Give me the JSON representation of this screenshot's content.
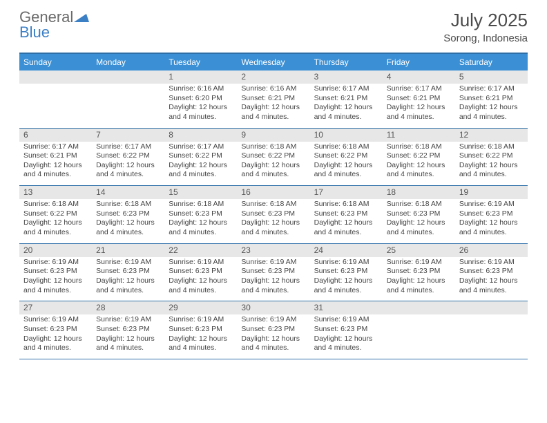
{
  "logo": {
    "part1": "General",
    "part2": "Blue"
  },
  "title": "July 2025",
  "subtitle": "Sorong, Indonesia",
  "colors": {
    "header_bar": "#3b8fd4",
    "border": "#2f6fa8",
    "daynum_bg": "#e7e7e7",
    "logo_gray": "#6a6a6a",
    "logo_blue": "#3b7fc4"
  },
  "day_headers": [
    "Sunday",
    "Monday",
    "Tuesday",
    "Wednesday",
    "Thursday",
    "Friday",
    "Saturday"
  ],
  "weeks": [
    [
      {
        "num": "",
        "lines": []
      },
      {
        "num": "",
        "lines": []
      },
      {
        "num": "1",
        "lines": [
          "Sunrise: 6:16 AM",
          "Sunset: 6:20 PM",
          "Daylight: 12 hours",
          "and 4 minutes."
        ]
      },
      {
        "num": "2",
        "lines": [
          "Sunrise: 6:16 AM",
          "Sunset: 6:21 PM",
          "Daylight: 12 hours",
          "and 4 minutes."
        ]
      },
      {
        "num": "3",
        "lines": [
          "Sunrise: 6:17 AM",
          "Sunset: 6:21 PM",
          "Daylight: 12 hours",
          "and 4 minutes."
        ]
      },
      {
        "num": "4",
        "lines": [
          "Sunrise: 6:17 AM",
          "Sunset: 6:21 PM",
          "Daylight: 12 hours",
          "and 4 minutes."
        ]
      },
      {
        "num": "5",
        "lines": [
          "Sunrise: 6:17 AM",
          "Sunset: 6:21 PM",
          "Daylight: 12 hours",
          "and 4 minutes."
        ]
      }
    ],
    [
      {
        "num": "6",
        "lines": [
          "Sunrise: 6:17 AM",
          "Sunset: 6:21 PM",
          "Daylight: 12 hours",
          "and 4 minutes."
        ]
      },
      {
        "num": "7",
        "lines": [
          "Sunrise: 6:17 AM",
          "Sunset: 6:22 PM",
          "Daylight: 12 hours",
          "and 4 minutes."
        ]
      },
      {
        "num": "8",
        "lines": [
          "Sunrise: 6:17 AM",
          "Sunset: 6:22 PM",
          "Daylight: 12 hours",
          "and 4 minutes."
        ]
      },
      {
        "num": "9",
        "lines": [
          "Sunrise: 6:18 AM",
          "Sunset: 6:22 PM",
          "Daylight: 12 hours",
          "and 4 minutes."
        ]
      },
      {
        "num": "10",
        "lines": [
          "Sunrise: 6:18 AM",
          "Sunset: 6:22 PM",
          "Daylight: 12 hours",
          "and 4 minutes."
        ]
      },
      {
        "num": "11",
        "lines": [
          "Sunrise: 6:18 AM",
          "Sunset: 6:22 PM",
          "Daylight: 12 hours",
          "and 4 minutes."
        ]
      },
      {
        "num": "12",
        "lines": [
          "Sunrise: 6:18 AM",
          "Sunset: 6:22 PM",
          "Daylight: 12 hours",
          "and 4 minutes."
        ]
      }
    ],
    [
      {
        "num": "13",
        "lines": [
          "Sunrise: 6:18 AM",
          "Sunset: 6:22 PM",
          "Daylight: 12 hours",
          "and 4 minutes."
        ]
      },
      {
        "num": "14",
        "lines": [
          "Sunrise: 6:18 AM",
          "Sunset: 6:23 PM",
          "Daylight: 12 hours",
          "and 4 minutes."
        ]
      },
      {
        "num": "15",
        "lines": [
          "Sunrise: 6:18 AM",
          "Sunset: 6:23 PM",
          "Daylight: 12 hours",
          "and 4 minutes."
        ]
      },
      {
        "num": "16",
        "lines": [
          "Sunrise: 6:18 AM",
          "Sunset: 6:23 PM",
          "Daylight: 12 hours",
          "and 4 minutes."
        ]
      },
      {
        "num": "17",
        "lines": [
          "Sunrise: 6:18 AM",
          "Sunset: 6:23 PM",
          "Daylight: 12 hours",
          "and 4 minutes."
        ]
      },
      {
        "num": "18",
        "lines": [
          "Sunrise: 6:18 AM",
          "Sunset: 6:23 PM",
          "Daylight: 12 hours",
          "and 4 minutes."
        ]
      },
      {
        "num": "19",
        "lines": [
          "Sunrise: 6:19 AM",
          "Sunset: 6:23 PM",
          "Daylight: 12 hours",
          "and 4 minutes."
        ]
      }
    ],
    [
      {
        "num": "20",
        "lines": [
          "Sunrise: 6:19 AM",
          "Sunset: 6:23 PM",
          "Daylight: 12 hours",
          "and 4 minutes."
        ]
      },
      {
        "num": "21",
        "lines": [
          "Sunrise: 6:19 AM",
          "Sunset: 6:23 PM",
          "Daylight: 12 hours",
          "and 4 minutes."
        ]
      },
      {
        "num": "22",
        "lines": [
          "Sunrise: 6:19 AM",
          "Sunset: 6:23 PM",
          "Daylight: 12 hours",
          "and 4 minutes."
        ]
      },
      {
        "num": "23",
        "lines": [
          "Sunrise: 6:19 AM",
          "Sunset: 6:23 PM",
          "Daylight: 12 hours",
          "and 4 minutes."
        ]
      },
      {
        "num": "24",
        "lines": [
          "Sunrise: 6:19 AM",
          "Sunset: 6:23 PM",
          "Daylight: 12 hours",
          "and 4 minutes."
        ]
      },
      {
        "num": "25",
        "lines": [
          "Sunrise: 6:19 AM",
          "Sunset: 6:23 PM",
          "Daylight: 12 hours",
          "and 4 minutes."
        ]
      },
      {
        "num": "26",
        "lines": [
          "Sunrise: 6:19 AM",
          "Sunset: 6:23 PM",
          "Daylight: 12 hours",
          "and 4 minutes."
        ]
      }
    ],
    [
      {
        "num": "27",
        "lines": [
          "Sunrise: 6:19 AM",
          "Sunset: 6:23 PM",
          "Daylight: 12 hours",
          "and 4 minutes."
        ]
      },
      {
        "num": "28",
        "lines": [
          "Sunrise: 6:19 AM",
          "Sunset: 6:23 PM",
          "Daylight: 12 hours",
          "and 4 minutes."
        ]
      },
      {
        "num": "29",
        "lines": [
          "Sunrise: 6:19 AM",
          "Sunset: 6:23 PM",
          "Daylight: 12 hours",
          "and 4 minutes."
        ]
      },
      {
        "num": "30",
        "lines": [
          "Sunrise: 6:19 AM",
          "Sunset: 6:23 PM",
          "Daylight: 12 hours",
          "and 4 minutes."
        ]
      },
      {
        "num": "31",
        "lines": [
          "Sunrise: 6:19 AM",
          "Sunset: 6:23 PM",
          "Daylight: 12 hours",
          "and 4 minutes."
        ]
      },
      {
        "num": "",
        "lines": []
      },
      {
        "num": "",
        "lines": []
      }
    ]
  ]
}
